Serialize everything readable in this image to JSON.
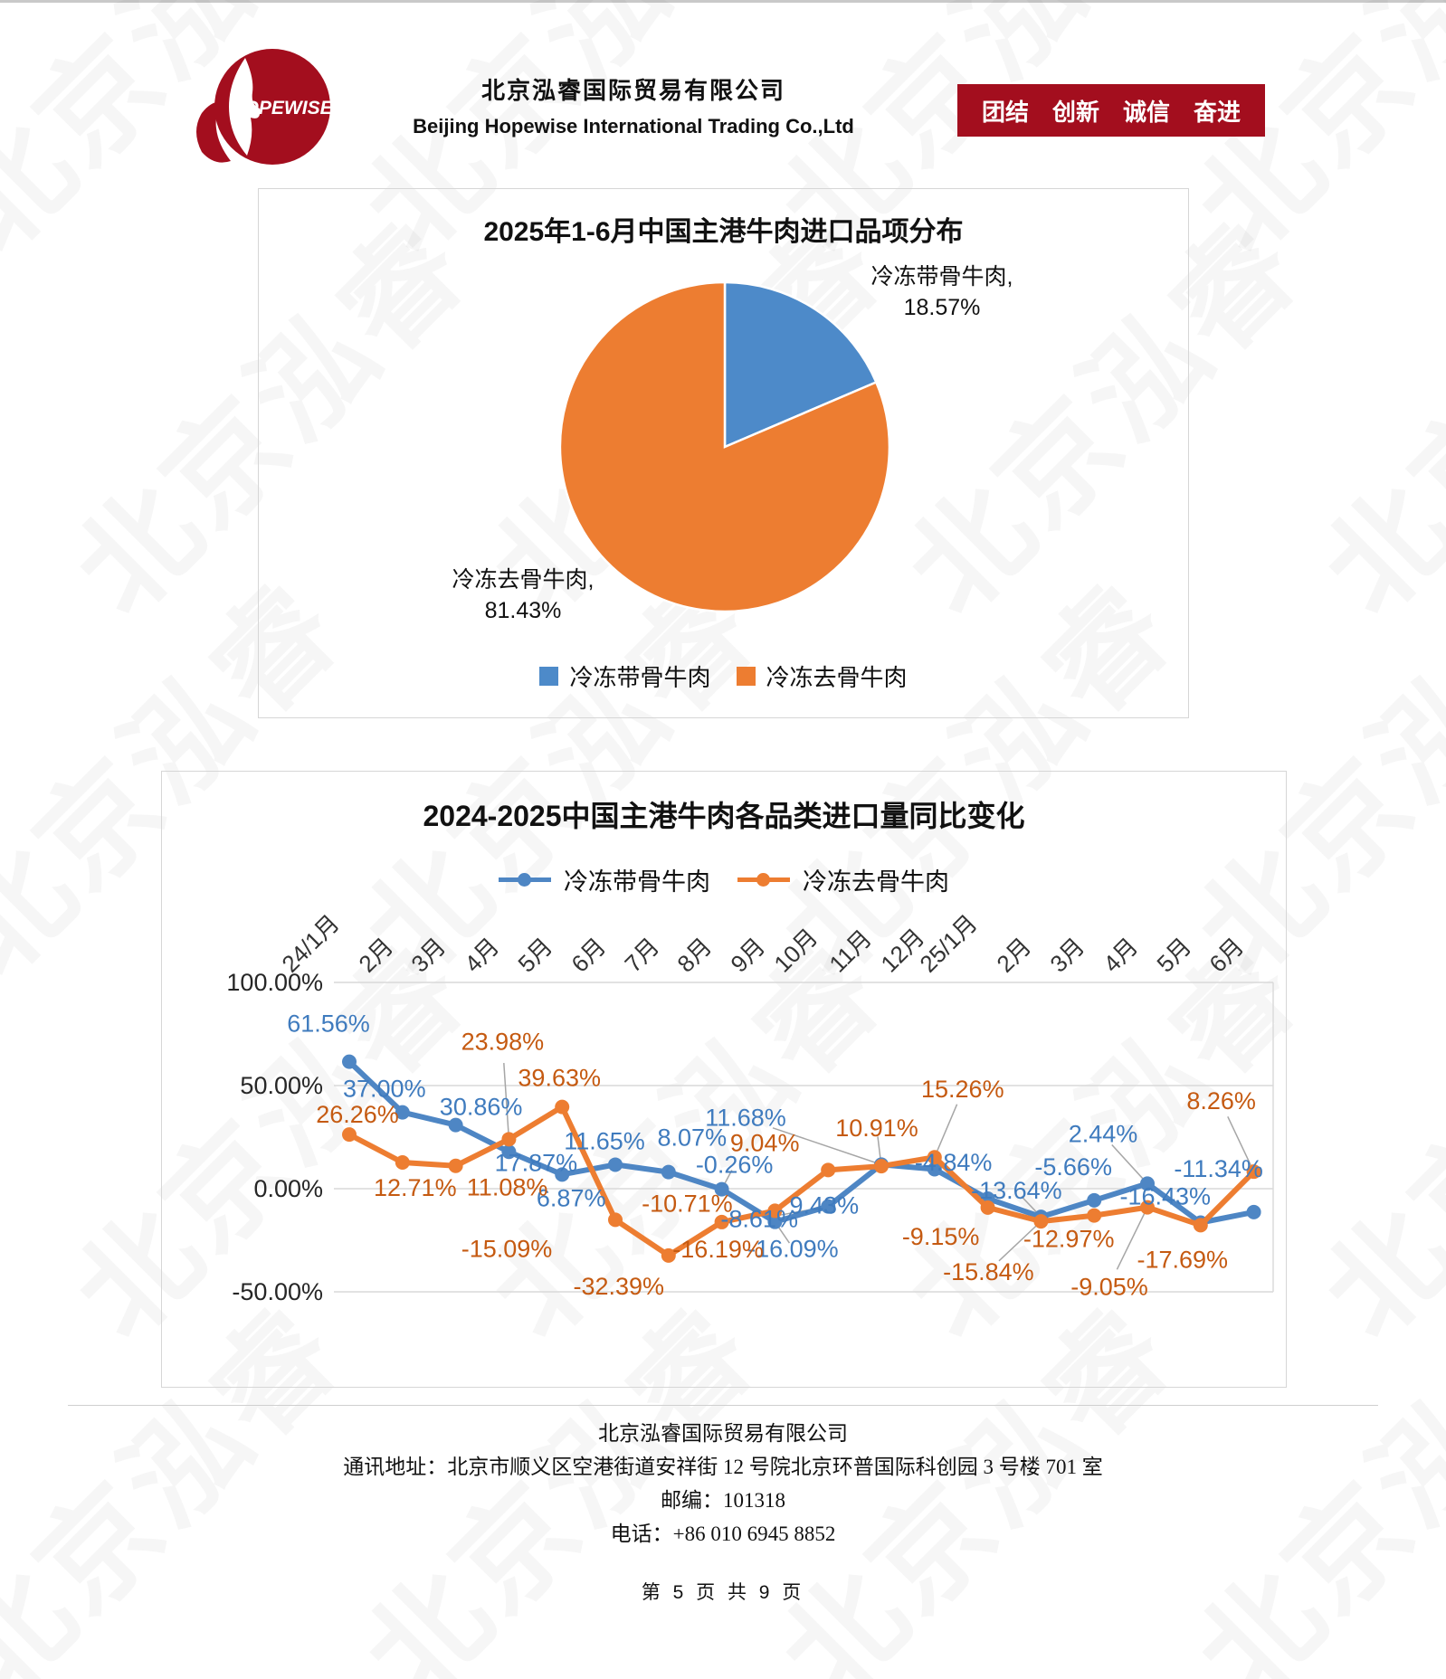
{
  "page": {
    "watermark_text": "北京泓睿"
  },
  "header": {
    "logo_text": "HOPEWISE",
    "company_name_cn": "北京泓睿国际贸易有限公司",
    "company_name_en": "Beijing Hopewise International Trading Co.,Ltd",
    "slogan_items": [
      "团结",
      "创新",
      "诚信",
      "奋进"
    ],
    "brand_color": "#A30E1E"
  },
  "chart_data": [
    {
      "type": "pie",
      "title": "2025年1-6月中国主港牛肉进口品项分布",
      "start_angle_deg": -90,
      "direction": "clockwise",
      "legend_position": "bottom",
      "slices": [
        {
          "name": "冷冻带骨牛肉",
          "value": 18.57,
          "color": "#4D8AC9",
          "callout_line1": "冷冻带骨牛肉,",
          "callout_line2": "18.57%"
        },
        {
          "name": "冷冻去骨牛肉",
          "value": 81.43,
          "color": "#ED7D31",
          "callout_line1": "冷冻去骨牛肉,",
          "callout_line2": "81.43%"
        }
      ]
    },
    {
      "type": "line",
      "title": "2024-2025中国主港牛肉各品类进口量同比变化",
      "legend_position": "top",
      "grid": true,
      "ylim": [
        -50,
        100
      ],
      "yticks": [
        {
          "label": "100.00%",
          "value": 100
        },
        {
          "label": "50.00%",
          "value": 50
        },
        {
          "label": "0.00%",
          "value": 0
        },
        {
          "label": "-50.00%",
          "value": -50
        }
      ],
      "categories": [
        "24/1月",
        "2月",
        "3月",
        "4月",
        "5月",
        "6月",
        "7月",
        "8月",
        "9月",
        "10月",
        "11月",
        "12月",
        "25/1月",
        "2月",
        "3月",
        "4月",
        "5月",
        "6月"
      ],
      "series": [
        {
          "name": "冷冻带骨牛肉",
          "color": "#4E86C4",
          "label_color": "#3F7BBE",
          "values": [
            61.56,
            37.0,
            30.86,
            17.87,
            6.87,
            11.65,
            8.07,
            -0.26,
            -16.09,
            -8.61,
            11.68,
            9.43,
            -4.84,
            -13.64,
            -5.66,
            2.44,
            -16.43,
            -11.34
          ]
        },
        {
          "name": "冷冻去骨牛肉",
          "color": "#ED7D31",
          "label_color": "#C55A11",
          "values": [
            26.26,
            12.71,
            11.08,
            23.98,
            39.63,
            -15.09,
            -32.39,
            -16.19,
            -10.71,
            9.04,
            10.91,
            15.26,
            -9.15,
            -15.84,
            -12.97,
            -9.05,
            -17.69,
            8.26
          ]
        }
      ]
    }
  ],
  "footer": {
    "company": "北京泓睿国际贸易有限公司",
    "address": "通讯地址：北京市顺义区空港街道安祥街 12 号院北京环普国际科创园 3 号楼 701 室",
    "postcode": "邮编：101318",
    "phone": "电话：+86 010 6945 8852",
    "page_indicator": "第 5 页 共 9 页"
  }
}
